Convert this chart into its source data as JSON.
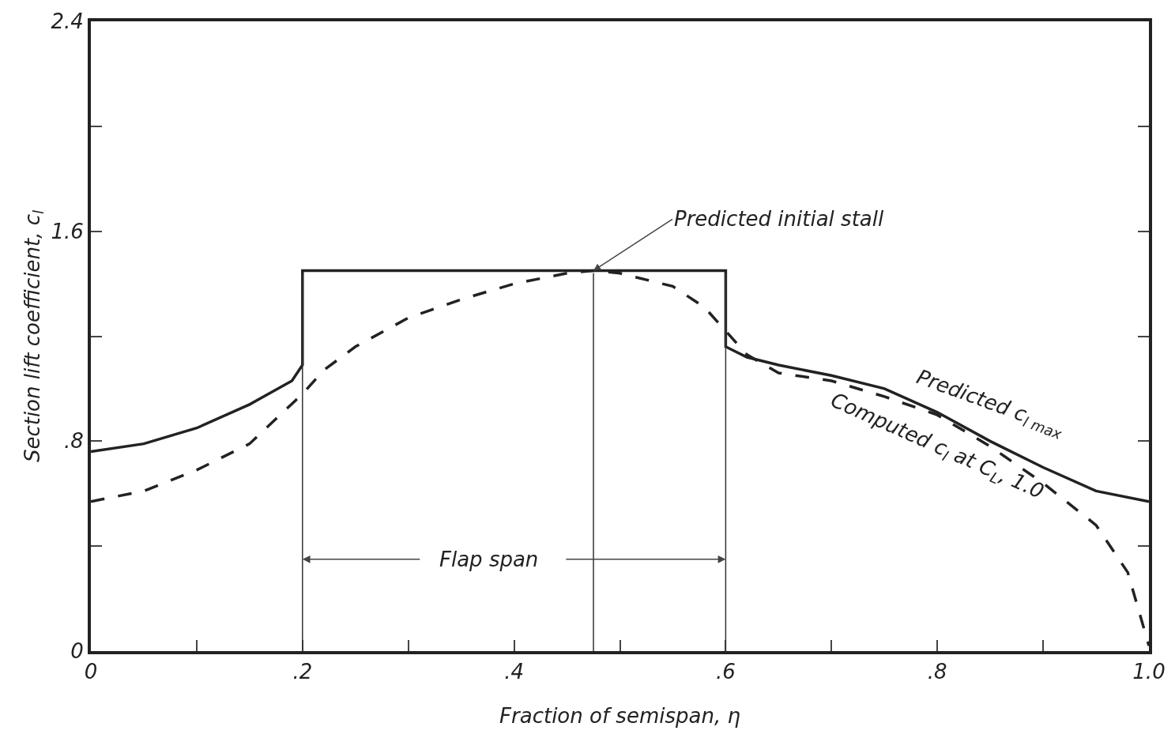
{
  "chart_data": {
    "type": "line",
    "xlabel": "Fraction of semispan, η",
    "ylabel": "Section lift coefficient, c$_{l}$",
    "xlim": [
      0,
      1.0
    ],
    "ylim": [
      0,
      2.4
    ],
    "xticks": [
      0,
      {
        "value": 0.1,
        "label": null
      },
      {
        "value": 0.2,
        "label": ".2"
      },
      {
        "value": 0.3,
        "label": null
      },
      {
        "value": 0.4,
        "label": ".4"
      },
      {
        "value": 0.5,
        "label": null
      },
      {
        "value": 0.6,
        "label": ".6"
      },
      {
        "value": 0.7,
        "label": null
      },
      {
        "value": 0.8,
        "label": ".8"
      },
      {
        "value": 0.9,
        "label": null
      },
      {
        "value": 1.0,
        "label": "1.0"
      }
    ],
    "yticks": [
      0,
      {
        "value": 0.4,
        "label": null
      },
      {
        "value": 0.8,
        "label": ".8"
      },
      {
        "value": 1.2,
        "label": null
      },
      {
        "value": 1.6,
        "label": "1.6"
      },
      {
        "value": 2.0,
        "label": null
      },
      {
        "value": 2.4,
        "label": "2.4"
      }
    ],
    "grid": false,
    "legend": false,
    "marker": "none",
    "series": [
      {
        "name": "Predicted c$_{l max}$",
        "color": "#222222",
        "line_style": "solid",
        "x": [
          0,
          0.05,
          0.1,
          0.15,
          0.19,
          0.2,
          0.2,
          0.6,
          0.6,
          0.62,
          0.65,
          0.7,
          0.75,
          0.8,
          0.85,
          0.9,
          0.95,
          1.0
        ],
        "values": [
          0.76,
          0.79,
          0.85,
          0.94,
          1.03,
          1.09,
          1.45,
          1.45,
          1.16,
          1.12,
          1.09,
          1.05,
          1.0,
          0.91,
          0.8,
          0.7,
          0.61,
          0.57
        ]
      },
      {
        "name": "Computed c$_{l}$ at C$_{L}$, 1.0",
        "color": "#222222",
        "line_style": "dashed",
        "x": [
          0,
          0.05,
          0.1,
          0.15,
          0.2,
          0.22,
          0.25,
          0.3,
          0.35,
          0.4,
          0.45,
          0.475,
          0.5,
          0.55,
          0.58,
          0.6,
          0.62,
          0.65,
          0.7,
          0.75,
          0.8,
          0.85,
          0.9,
          0.95,
          0.98,
          1.0
        ],
        "values": [
          0.57,
          0.61,
          0.69,
          0.79,
          0.98,
          1.07,
          1.16,
          1.27,
          1.34,
          1.4,
          1.44,
          1.45,
          1.44,
          1.39,
          1.31,
          1.22,
          1.13,
          1.06,
          1.03,
          0.97,
          0.9,
          0.78,
          0.64,
          0.48,
          0.3,
          0.02
        ]
      }
    ],
    "ref_lines": [
      {
        "axis": "x",
        "value": 0.2,
        "label": null
      },
      {
        "axis": "x",
        "value": 0.6,
        "label": null
      },
      {
        "axis": "x",
        "value": 0.475,
        "label": null
      }
    ],
    "annotations": [
      {
        "text": "Predicted initial stall",
        "x": 0.475,
        "y": 1.45
      },
      {
        "text": "Flap span",
        "x": 0.2,
        "y": 0.35
      }
    ]
  }
}
